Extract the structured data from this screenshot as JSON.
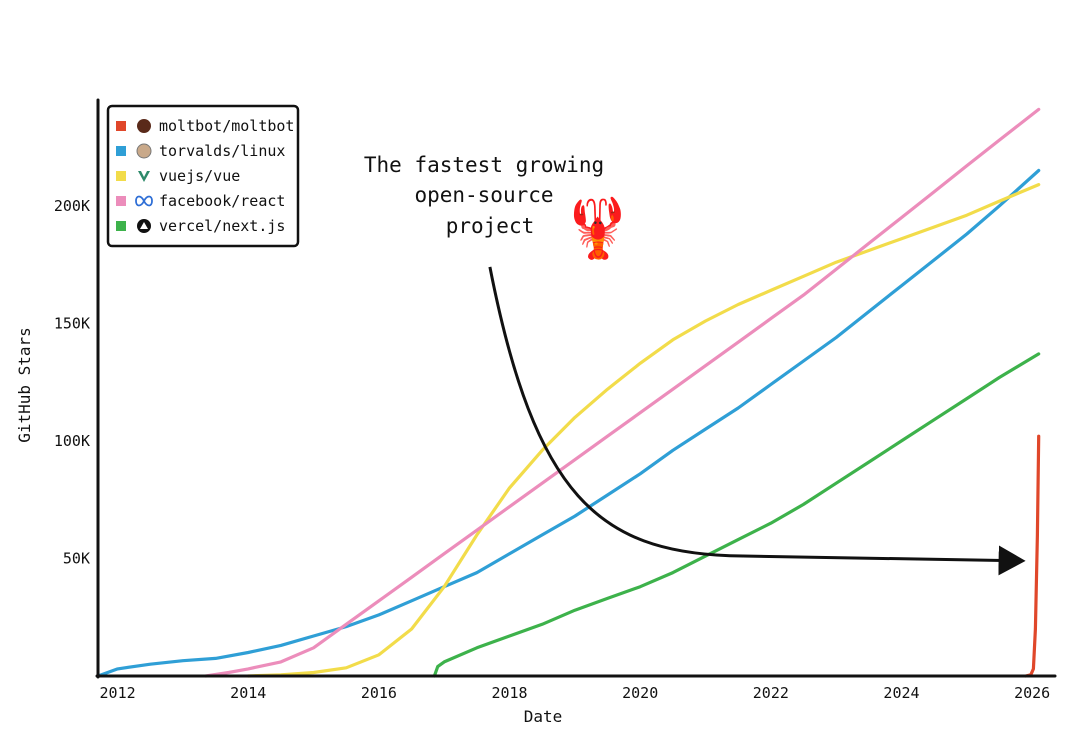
{
  "chart_data": {
    "type": "line",
    "title": "",
    "xlabel": "Date",
    "ylabel": "GitHub Stars",
    "xlim": [
      2011.7,
      2026.35
    ],
    "ylim": [
      0,
      245000
    ],
    "x_ticks": [
      2012,
      2014,
      2016,
      2018,
      2020,
      2022,
      2024,
      2026
    ],
    "y_ticks": [
      {
        "value": 50000,
        "label": "50K"
      },
      {
        "value": 100000,
        "label": "100K"
      },
      {
        "value": 150000,
        "label": "150K"
      },
      {
        "value": 200000,
        "label": "200K"
      }
    ],
    "grid": false,
    "legend_position": "top-left",
    "series": [
      {
        "name": "moltbot/moltbot",
        "color": "#e0472a",
        "legend_icon": "moltbot-avatar-icon",
        "x": [
          2025.9,
          2025.98,
          2026.02,
          2026.05,
          2026.08,
          2026.1
        ],
        "y": [
          0,
          500,
          3000,
          20000,
          60000,
          102000
        ]
      },
      {
        "name": "torvalds/linux",
        "color": "#2f9fd6",
        "legend_icon": "linux-avatar-icon",
        "x": [
          2011.7,
          2012.0,
          2012.5,
          2013.0,
          2013.5,
          2014.0,
          2014.5,
          2015.0,
          2015.5,
          2016.0,
          2016.5,
          2017.0,
          2017.5,
          2018.0,
          2018.5,
          2019.0,
          2019.5,
          2020.0,
          2020.5,
          2021.0,
          2021.5,
          2022.0,
          2022.5,
          2023.0,
          2023.5,
          2024.0,
          2024.5,
          2025.0,
          2025.5,
          2026.1
        ],
        "y": [
          0,
          3000,
          5000,
          6500,
          7500,
          10000,
          13000,
          17000,
          21000,
          26000,
          32000,
          38000,
          44000,
          52000,
          60000,
          68000,
          77000,
          86000,
          96000,
          105000,
          114000,
          124000,
          134000,
          144000,
          155000,
          166000,
          177000,
          188000,
          200000,
          215000
        ]
      },
      {
        "name": "vuejs/vue",
        "color": "#f2dc4a",
        "legend_icon": "vue-logo-icon",
        "x": [
          2014.0,
          2014.5,
          2015.0,
          2015.5,
          2016.0,
          2016.5,
          2017.0,
          2017.5,
          2018.0,
          2018.5,
          2019.0,
          2019.5,
          2020.0,
          2020.5,
          2021.0,
          2021.5,
          2022.0,
          2022.5,
          2023.0,
          2023.5,
          2024.0,
          2024.5,
          2025.0,
          2025.5,
          2026.1
        ],
        "y": [
          0,
          500,
          1500,
          3500,
          9000,
          20000,
          38000,
          60000,
          80000,
          96000,
          110000,
          122000,
          133000,
          143000,
          151000,
          158000,
          164000,
          170000,
          176000,
          181000,
          186000,
          191000,
          196000,
          202000,
          209000
        ]
      },
      {
        "name": "facebook/react",
        "color": "#ec8dbb",
        "legend_icon": "meta-logo-icon",
        "x": [
          2013.35,
          2013.7,
          2014.0,
          2014.5,
          2015.0,
          2015.5,
          2016.0,
          2016.5,
          2017.0,
          2017.5,
          2018.0,
          2018.5,
          2019.0,
          2019.5,
          2020.0,
          2020.5,
          2021.0,
          2021.5,
          2022.0,
          2022.5,
          2023.0,
          2023.5,
          2024.0,
          2024.5,
          2025.0,
          2025.5,
          2026.1
        ],
        "y": [
          0,
          1500,
          3000,
          6000,
          12000,
          22000,
          32000,
          42000,
          52000,
          62000,
          72000,
          82000,
          92000,
          102000,
          112000,
          122000,
          132000,
          142000,
          152000,
          162000,
          173000,
          184000,
          195000,
          206000,
          217000,
          228000,
          241000
        ]
      },
      {
        "name": "vercel/next.js",
        "color": "#3db24b",
        "legend_icon": "vercel-logo-icon",
        "x": [
          2016.85,
          2016.9,
          2017.0,
          2017.5,
          2018.0,
          2018.5,
          2019.0,
          2019.5,
          2020.0,
          2020.5,
          2021.0,
          2021.5,
          2022.0,
          2022.5,
          2023.0,
          2023.5,
          2024.0,
          2024.5,
          2025.0,
          2025.5,
          2026.1
        ],
        "y": [
          0,
          4000,
          6000,
          12000,
          17000,
          22000,
          28000,
          33000,
          38000,
          44000,
          51000,
          58000,
          65000,
          73000,
          82000,
          91000,
          100000,
          109000,
          118000,
          127000,
          137000
        ]
      }
    ],
    "annotation": {
      "lines": [
        "The fastest growing",
        "open-source",
        "project"
      ],
      "emoji": "🦞",
      "emoji_name": "lobster-icon",
      "arrow_from": {
        "x": 2017.7,
        "y": 174000
      },
      "arrow_to": {
        "x": 2025.9,
        "y": 49000
      }
    }
  }
}
